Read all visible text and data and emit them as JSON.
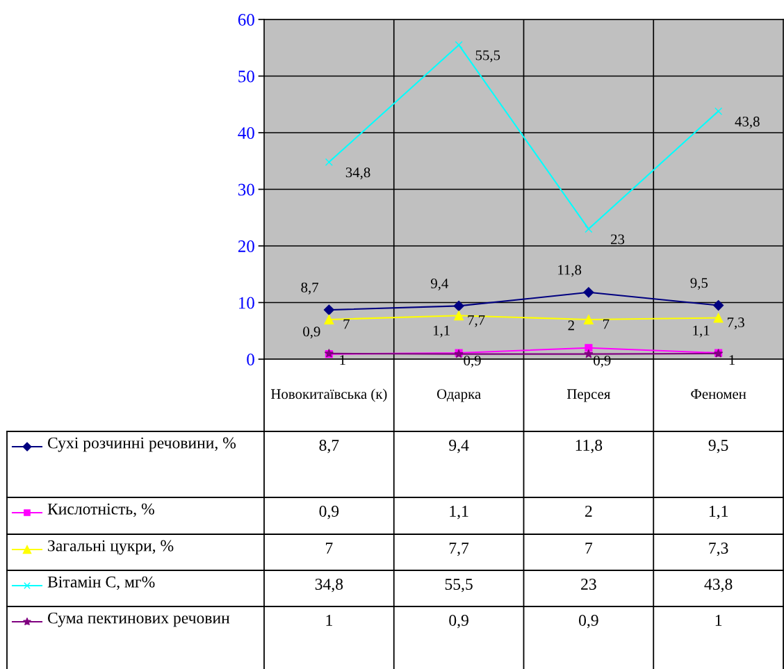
{
  "chart_data": {
    "type": "line",
    "categories": [
      "Новокитаївська (к)",
      "Одарка",
      "Персея",
      "Феномен"
    ],
    "series": [
      {
        "name": "Сухі розчинні речовини, %",
        "color": "#000080",
        "marker": "diamond",
        "values": [
          8.7,
          9.4,
          11.8,
          9.5
        ],
        "value_labels": [
          "8,7",
          "9,4",
          "11,8",
          "9,5"
        ]
      },
      {
        "name": "Кислотність, %",
        "color": "#ff00ff",
        "marker": "square",
        "values": [
          0.9,
          1.1,
          2,
          1.1
        ],
        "value_labels": [
          "0,9",
          "1,1",
          "2",
          "1,1"
        ]
      },
      {
        "name": "Загальні цукри, %",
        "color": "#ffff00",
        "marker": "triangle",
        "values": [
          7,
          7.7,
          7,
          7.3
        ],
        "value_labels": [
          "7",
          "7,7",
          "7",
          "7,3"
        ]
      },
      {
        "name": "Вітамін С, мг%",
        "color": "#00ffff",
        "marker": "cross",
        "values": [
          34.8,
          55.5,
          23,
          43.8
        ],
        "value_labels": [
          "34,8",
          "55,5",
          "23",
          "43,8"
        ]
      },
      {
        "name": "Сума пектинових речовин",
        "color": "#800080",
        "marker": "star",
        "values": [
          1,
          0.9,
          0.9,
          1
        ],
        "value_labels": [
          "1",
          "0,9",
          "0,9",
          "1"
        ]
      }
    ],
    "ylim": [
      0,
      60
    ],
    "yticks": [
      0,
      10,
      20,
      30,
      40,
      50,
      60
    ],
    "grid": true,
    "legend": "bottom left"
  }
}
